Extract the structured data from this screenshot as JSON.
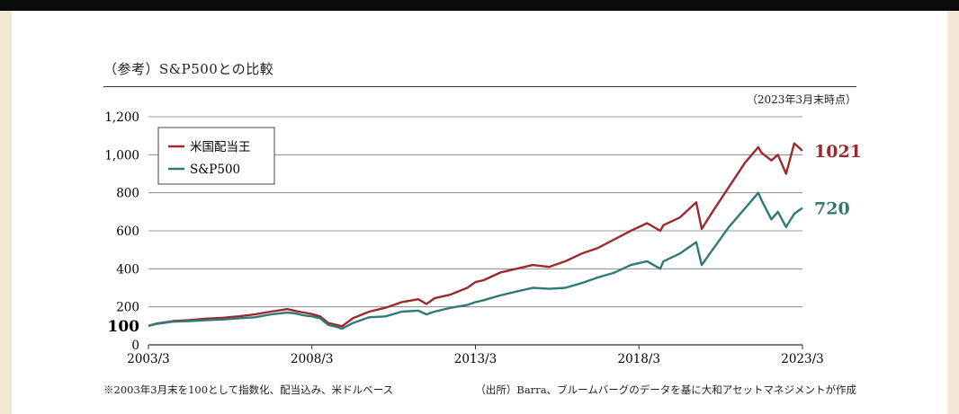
{
  "header": {
    "title": "（参考）S&P500との比較",
    "as_of": "（2023年3月末時点）"
  },
  "footer": {
    "note": "※2003年3月末を100として指数化、配当込み、米ドルベース",
    "source": "（出所）Barra、ブルームバーグのデータを基に大和アセットマネジメントが作成"
  },
  "chart_data": {
    "type": "line",
    "title": "（参考）S&P500との比較",
    "xlabel": "",
    "ylabel": "",
    "xlim": [
      2003.25,
      2023.25
    ],
    "ylim": [
      0,
      1200
    ],
    "y_ticks": [
      0,
      200,
      400,
      600,
      800,
      1000,
      1200
    ],
    "y_tick_labels": [
      "0",
      "200",
      "400",
      "600",
      "800",
      "1,000",
      "1,200"
    ],
    "y_reference": {
      "value": 100,
      "label": "100"
    },
    "x_ticks": [
      2003.25,
      2008.25,
      2013.25,
      2018.25,
      2023.25
    ],
    "x_tick_labels": [
      "2003/3",
      "2008/3",
      "2013/3",
      "2018/3",
      "2023/3"
    ],
    "grid": "horizontal",
    "legend": "top-left",
    "series": [
      {
        "name": "米国配当王",
        "color": "#9b2a2f",
        "end_label": "1021",
        "x": [
          2003.25,
          2003.5,
          2004.0,
          2004.5,
          2005.0,
          2005.5,
          2006.0,
          2006.5,
          2007.0,
          2007.5,
          2007.75,
          2008.0,
          2008.25,
          2008.5,
          2008.75,
          2009.0,
          2009.17,
          2009.5,
          2010.0,
          2010.5,
          2011.0,
          2011.5,
          2011.75,
          2012.0,
          2012.5,
          2013.0,
          2013.25,
          2013.5,
          2014.0,
          2014.5,
          2015.0,
          2015.5,
          2016.0,
          2016.5,
          2017.0,
          2017.5,
          2018.0,
          2018.5,
          2018.9,
          2019.0,
          2019.5,
          2020.0,
          2020.17,
          2020.5,
          2021.0,
          2021.5,
          2021.9,
          2022.0,
          2022.3,
          2022.5,
          2022.75,
          2023.0,
          2023.25
        ],
        "y": [
          100,
          112,
          125,
          130,
          138,
          142,
          150,
          160,
          175,
          188,
          178,
          170,
          162,
          150,
          115,
          105,
          98,
          140,
          175,
          195,
          225,
          240,
          215,
          245,
          265,
          300,
          330,
          340,
          380,
          400,
          420,
          410,
          440,
          480,
          510,
          555,
          600,
          640,
          600,
          630,
          670,
          750,
          610,
          700,
          830,
          960,
          1040,
          1010,
          970,
          1000,
          900,
          1060,
          1021
        ]
      },
      {
        "name": "S&P500",
        "color": "#2f7a74",
        "end_label": "720",
        "x": [
          2003.25,
          2003.5,
          2004.0,
          2004.5,
          2005.0,
          2005.5,
          2006.0,
          2006.5,
          2007.0,
          2007.5,
          2007.75,
          2008.0,
          2008.25,
          2008.5,
          2008.75,
          2009.0,
          2009.17,
          2009.5,
          2010.0,
          2010.5,
          2011.0,
          2011.5,
          2011.75,
          2012.0,
          2012.5,
          2013.0,
          2013.25,
          2013.5,
          2014.0,
          2014.5,
          2015.0,
          2015.5,
          2016.0,
          2016.5,
          2017.0,
          2017.5,
          2018.0,
          2018.5,
          2018.9,
          2019.0,
          2019.5,
          2020.0,
          2020.17,
          2020.5,
          2021.0,
          2021.5,
          2021.9,
          2022.0,
          2022.3,
          2022.5,
          2022.75,
          2023.0,
          2023.25
        ],
        "y": [
          100,
          110,
          122,
          125,
          130,
          133,
          140,
          145,
          160,
          170,
          165,
          155,
          150,
          140,
          105,
          95,
          85,
          115,
          145,
          150,
          175,
          180,
          160,
          175,
          195,
          210,
          225,
          235,
          260,
          280,
          300,
          295,
          300,
          325,
          355,
          380,
          420,
          440,
          400,
          440,
          480,
          540,
          420,
          500,
          620,
          720,
          800,
          760,
          660,
          700,
          620,
          690,
          720
        ]
      }
    ]
  }
}
